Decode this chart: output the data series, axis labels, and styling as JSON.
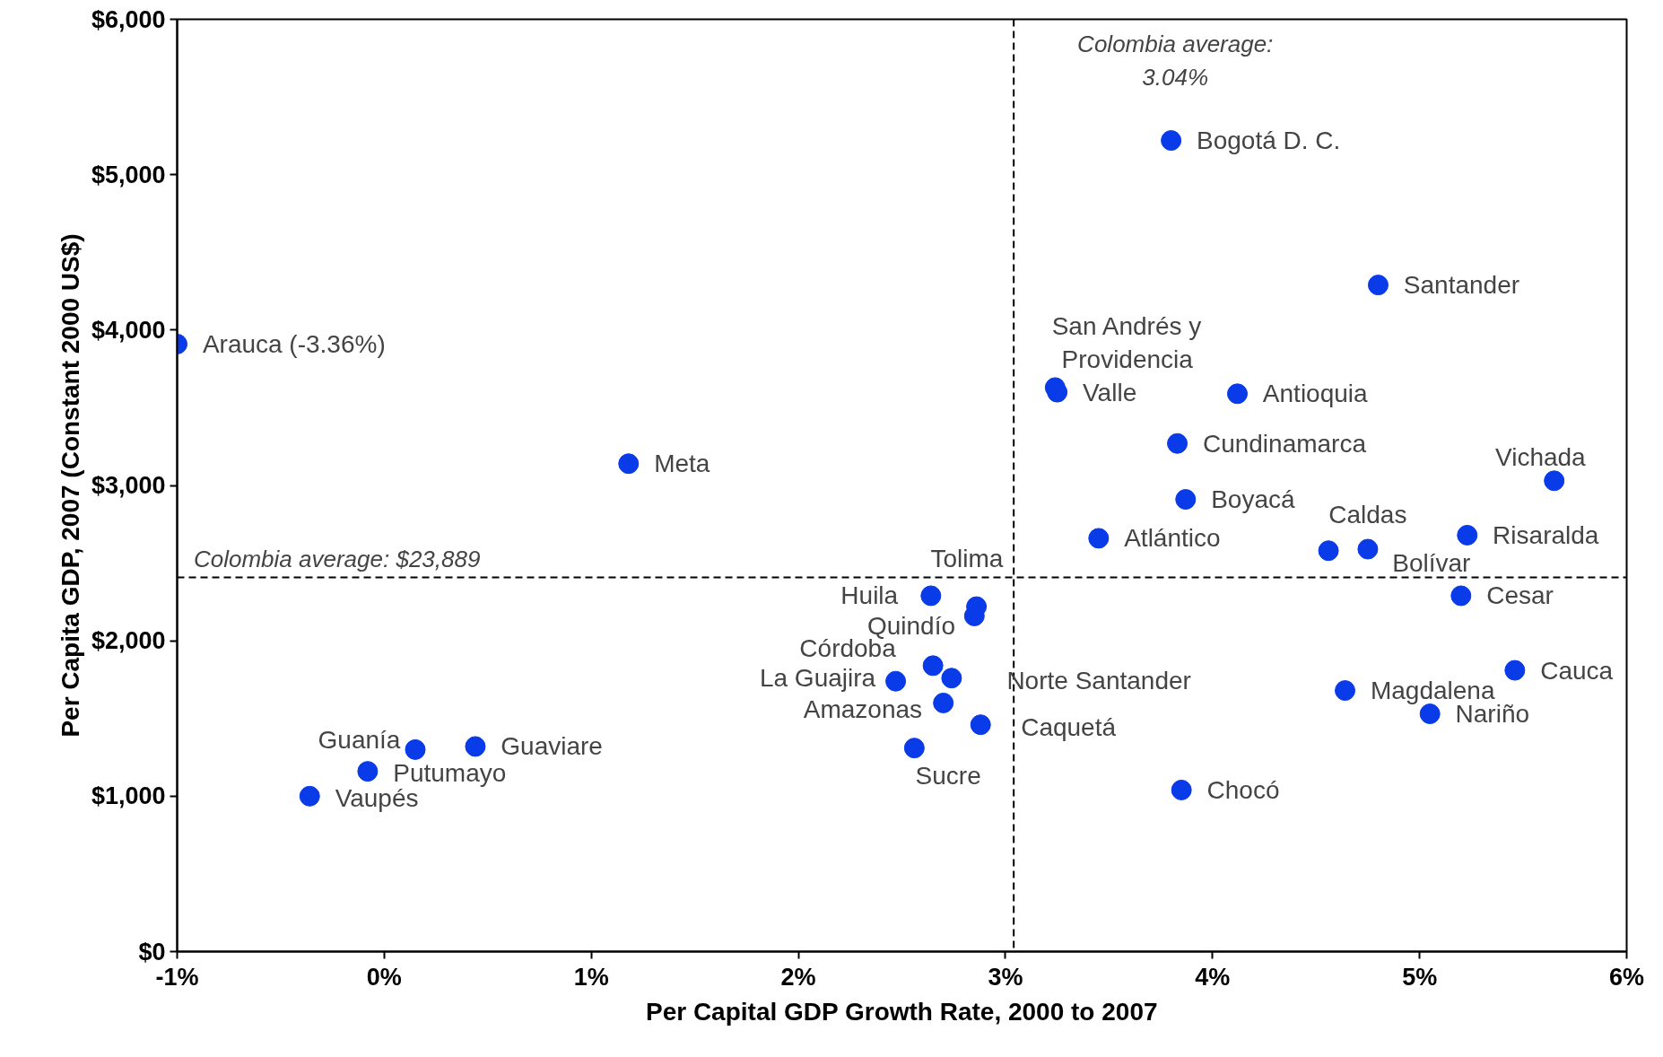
{
  "chart_data": {
    "type": "scatter",
    "xlabel": "Per Capital GDP Growth Rate, 2000 to 2007",
    "ylabel": "Per Capita GDP, 2007 (Constant 2000 US$)",
    "x": [
      -1,
      1.18,
      3.8,
      4.8,
      3.24,
      3.25,
      4.12,
      3.83,
      5.65,
      3.87,
      3.45,
      4.56,
      4.75,
      5.23,
      5.2,
      5.46,
      4.64,
      5.05,
      3.85,
      2.64,
      2.86,
      2.85,
      2.65,
      2.74,
      2.47,
      2.7,
      2.88,
      2.56,
      0.15,
      0.44,
      -0.08,
      -0.36
    ],
    "values": [
      3910,
      3140,
      5220,
      4290,
      3630,
      3600,
      3590,
      3270,
      3030,
      2910,
      2660,
      2580,
      2590,
      2680,
      2290,
      1810,
      1680,
      1530,
      1040,
      2290,
      2220,
      2160,
      1840,
      1760,
      1740,
      1600,
      1460,
      1310,
      1300,
      1320,
      1160,
      1000
    ],
    "color": "#0a3be8",
    "marker": "circle",
    "grid": false,
    "xlim": [
      -1,
      6
    ],
    "ylim": [
      0,
      6000
    ],
    "xticks": [
      {
        "value": -1,
        "label": "-1%"
      },
      {
        "value": 0,
        "label": "0%"
      },
      {
        "value": 1,
        "label": "1%"
      },
      {
        "value": 2,
        "label": "2%"
      },
      {
        "value": 3,
        "label": "3%"
      },
      {
        "value": 4,
        "label": "4%"
      },
      {
        "value": 5,
        "label": "5%"
      },
      {
        "value": 6,
        "label": "6%"
      }
    ],
    "yticks": [
      {
        "value": 0,
        "label": "$0"
      },
      {
        "value": 1000,
        "label": "$1,000"
      },
      {
        "value": 2000,
        "label": "$2,000"
      },
      {
        "value": 3000,
        "label": "$3,000"
      },
      {
        "value": 4000,
        "label": "$4,000"
      },
      {
        "value": 5000,
        "label": "$5,000"
      },
      {
        "value": 6000,
        "label": "$6,000"
      }
    ],
    "ref_lines": [
      {
        "axis": "x",
        "value": 3.04,
        "line_style": "dashed",
        "color": "#000000"
      },
      {
        "axis": "y",
        "value": 2408,
        "line_style": "dashed",
        "color": "#000000"
      }
    ],
    "annotations": [
      "Colombia average:\n3.04%",
      "Colombia average: $23,889",
      {
        "text": "Arauca (-3.36%)",
        "x": -1,
        "y": 3910
      },
      {
        "text": "Meta",
        "x": 1.18,
        "y": 3140
      },
      {
        "text": "Bogotá D. C.",
        "x": 3.8,
        "y": 5220
      },
      {
        "text": "Santander",
        "x": 4.8,
        "y": 4290
      },
      {
        "text": "San Andrés y\nProvidencia",
        "x": 3.24,
        "y": 3630
      },
      {
        "text": "Valle",
        "x": 3.25,
        "y": 3600
      },
      {
        "text": "Antioquia",
        "x": 4.12,
        "y": 3590
      },
      {
        "text": "Cundinamarca",
        "x": 3.83,
        "y": 3270
      },
      {
        "text": "Vichada",
        "x": 5.65,
        "y": 3030
      },
      {
        "text": "Boyacá",
        "x": 3.87,
        "y": 2910
      },
      {
        "text": "Atlántico",
        "x": 3.45,
        "y": 2660
      },
      {
        "text": "Caldas",
        "x": 4.56,
        "y": 2580
      },
      {
        "text": "Bolívar",
        "x": 4.75,
        "y": 2590
      },
      {
        "text": "Risaralda",
        "x": 5.23,
        "y": 2680
      },
      {
        "text": "Cesar",
        "x": 5.2,
        "y": 2290
      },
      {
        "text": "Cauca",
        "x": 5.46,
        "y": 1810
      },
      {
        "text": "Magdalena",
        "x": 4.64,
        "y": 1680
      },
      {
        "text": "Nariño",
        "x": 5.05,
        "y": 1530
      },
      {
        "text": "Chocó",
        "x": 3.85,
        "y": 1040
      },
      {
        "text": "Huila",
        "x": 2.64,
        "y": 2290
      },
      {
        "text": "Tolima",
        "x": 2.86,
        "y": 2220
      },
      {
        "text": "Quindío",
        "x": 2.85,
        "y": 2160
      },
      {
        "text": "Córdoba",
        "x": 2.65,
        "y": 1840
      },
      {
        "text": "Norte Santander",
        "x": 2.74,
        "y": 1760
      },
      {
        "text": "La Guajira",
        "x": 2.47,
        "y": 1740
      },
      {
        "text": "Amazonas",
        "x": 2.7,
        "y": 1600
      },
      {
        "text": "Caquetá",
        "x": 2.88,
        "y": 1460
      },
      {
        "text": "Sucre",
        "x": 2.56,
        "y": 1310
      },
      {
        "text": "Guanía",
        "x": 0.15,
        "y": 1300
      },
      {
        "text": "Guaviare",
        "x": 0.44,
        "y": 1320
      },
      {
        "text": "Putumayo",
        "x": -0.08,
        "y": 1160
      },
      {
        "text": "Vaupés",
        "x": -0.36,
        "y": 1000
      }
    ]
  }
}
